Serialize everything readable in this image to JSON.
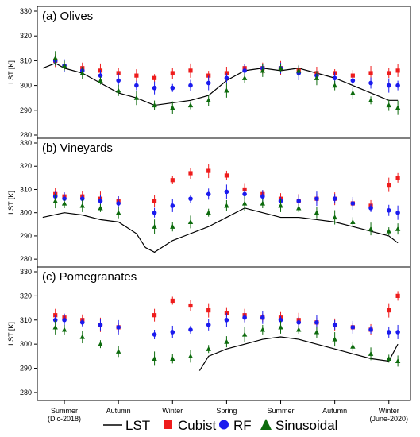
{
  "figure": {
    "x_tick_labels": [
      {
        "label": "Summer\n(Dic-2018)",
        "x": 0.0
      },
      {
        "label": "Autumn",
        "x": 3.0
      },
      {
        "label": "Winter",
        "x": 6.0
      },
      {
        "label": "Spring",
        "x": 9.0
      },
      {
        "label": "Summer",
        "x": 12.0
      },
      {
        "label": "Autumn",
        "x": 15.0
      },
      {
        "label": "Winter\n(June-2020)",
        "x": 18.0
      }
    ],
    "legend": [
      {
        "label": "LST",
        "color": "#000000",
        "marker": "line"
      },
      {
        "label": "Cubist",
        "color": "#ee1c1c",
        "marker": "square"
      },
      {
        "label": "RF",
        "color": "#1a1aee",
        "marker": "circle"
      },
      {
        "label": "Sinusoidal",
        "color": "#0d6b0d",
        "marker": "triangle"
      }
    ]
  },
  "chart_data": [
    {
      "type": "line",
      "title": "(a) Olives",
      "ylabel": "LST [K]",
      "ylim": [
        280,
        330
      ],
      "yticks": [
        280,
        290,
        300,
        310,
        320,
        330
      ],
      "xlim": [
        -1.5,
        19.2
      ],
      "series": [
        {
          "name": "LST",
          "x": [
            -1.2,
            -0.5,
            0,
            1,
            2,
            3,
            4,
            5,
            6,
            7,
            8,
            9,
            10,
            11,
            12,
            13,
            14,
            15,
            16,
            17,
            18,
            18.5
          ],
          "y": [
            307,
            309,
            307,
            305,
            301,
            297,
            295,
            292,
            293,
            294,
            296,
            302,
            306,
            307,
            306,
            307,
            305,
            303,
            300,
            297,
            294,
            294
          ]
        },
        {
          "name": "Cubist",
          "x": [
            -0.5,
            0,
            1,
            2,
            3,
            4,
            5,
            6,
            7,
            8,
            9,
            10,
            11,
            12,
            13,
            14,
            15,
            16,
            17,
            18,
            18.5
          ],
          "y": [
            310,
            308,
            307,
            306,
            305,
            304,
            303,
            305,
            306,
            304,
            305,
            307,
            307,
            307,
            306,
            305,
            305,
            304,
            305,
            305,
            306
          ]
        },
        {
          "name": "RF",
          "x": [
            -0.5,
            0,
            1,
            2,
            3,
            4,
            5,
            6,
            7,
            8,
            9,
            10,
            11,
            12,
            13,
            14,
            15,
            16,
            17,
            18,
            18.5
          ],
          "y": [
            310,
            308,
            306,
            304,
            302,
            300,
            299,
            299,
            300,
            301,
            303,
            306,
            307,
            307,
            305,
            304,
            303,
            302,
            301,
            300,
            300
          ]
        },
        {
          "name": "Sinusoidal",
          "x": [
            -0.5,
            0,
            1,
            2,
            3,
            4,
            5,
            6,
            7,
            8,
            9,
            10,
            11,
            12,
            13,
            14,
            15,
            16,
            17,
            18,
            18.5
          ],
          "y": [
            311,
            308,
            305,
            302,
            298,
            295,
            292,
            291,
            292,
            294,
            298,
            303,
            306,
            307,
            306,
            303,
            300,
            297,
            294,
            292,
            291
          ]
        }
      ]
    },
    {
      "type": "line",
      "title": "(b) Vineyards",
      "ylabel": "LST [K]",
      "ylim": [
        278,
        330
      ],
      "yticks": [
        280,
        290,
        300,
        310,
        320,
        330
      ],
      "xlim": [
        -1.5,
        19.2
      ],
      "series": [
        {
          "name": "LST",
          "x": [
            -1.2,
            0,
            1,
            2,
            3,
            4,
            4.5,
            5,
            6,
            7,
            8,
            9,
            10,
            11,
            12,
            13,
            14,
            15,
            16,
            17,
            18,
            18.5
          ],
          "y": [
            298,
            300,
            299,
            297,
            296,
            291,
            285,
            283,
            288,
            291,
            294,
            298,
            302,
            300,
            298,
            298,
            297,
            296,
            294,
            292,
            290,
            287
          ]
        },
        {
          "name": "Cubist",
          "x": [
            -0.5,
            0,
            1,
            2,
            3,
            5,
            6,
            7,
            8,
            9,
            10,
            11,
            12,
            13,
            14,
            15,
            16,
            17,
            18,
            18.5
          ],
          "y": [
            308,
            307,
            307,
            306,
            305,
            305,
            314,
            317,
            318,
            316,
            310,
            308,
            306,
            305,
            306,
            306,
            304,
            303,
            312,
            315
          ]
        },
        {
          "name": "RF",
          "x": [
            -0.5,
            0,
            1,
            2,
            3,
            5,
            6,
            7,
            8,
            9,
            10,
            11,
            12,
            13,
            14,
            15,
            16,
            17,
            18,
            18.5
          ],
          "y": [
            307,
            306,
            306,
            305,
            304,
            300,
            303,
            306,
            308,
            309,
            308,
            307,
            305,
            305,
            306,
            306,
            304,
            302,
            301,
            300
          ]
        },
        {
          "name": "Sinusoidal",
          "x": [
            -0.5,
            0,
            1,
            2,
            3,
            5,
            6,
            7,
            8,
            9,
            10,
            11,
            12,
            13,
            14,
            15,
            16,
            17,
            18,
            18.5
          ],
          "y": [
            305,
            304,
            303,
            302,
            300,
            294,
            294,
            296,
            300,
            303,
            304,
            304,
            303,
            302,
            300,
            298,
            296,
            293,
            292,
            293
          ]
        }
      ]
    },
    {
      "type": "line",
      "title": "(c) Pomegranates",
      "ylabel": "LST [K]",
      "ylim": [
        278,
        330
      ],
      "yticks": [
        280,
        290,
        300,
        310,
        320,
        330
      ],
      "xlim": [
        -1.5,
        19.2
      ],
      "series": [
        {
          "name": "LST",
          "x": [
            7.5,
            8,
            9,
            10,
            11,
            12,
            13,
            14,
            15,
            16,
            17,
            18,
            18.5
          ],
          "y": [
            289,
            295,
            298,
            300,
            302,
            303,
            302,
            300,
            298,
            296,
            294,
            293,
            300
          ]
        },
        {
          "name": "Cubist",
          "x": [
            -0.5,
            0,
            1,
            2,
            3,
            5,
            6,
            7,
            8,
            9,
            10,
            11,
            12,
            13,
            14,
            15,
            16,
            17,
            18,
            18.5
          ],
          "y": [
            312,
            311,
            310,
            308,
            307,
            312,
            318,
            316,
            314,
            313,
            312,
            311,
            311,
            310,
            309,
            308,
            307,
            306,
            314,
            320
          ]
        },
        {
          "name": "RF",
          "x": [
            -0.5,
            0,
            1,
            2,
            3,
            5,
            6,
            7,
            8,
            9,
            10,
            11,
            12,
            13,
            14,
            15,
            16,
            17,
            18,
            18.5
          ],
          "y": [
            310,
            310,
            309,
            308,
            307,
            304,
            305,
            306,
            308,
            310,
            311,
            311,
            310,
            309,
            309,
            308,
            307,
            306,
            305,
            305
          ]
        },
        {
          "name": "Sinusoidal",
          "x": [
            -0.5,
            0,
            1,
            2,
            3,
            5,
            6,
            7,
            8,
            9,
            10,
            11,
            12,
            13,
            14,
            15,
            16,
            17,
            18,
            18.5
          ],
          "y": [
            307,
            306,
            303,
            300,
            297,
            294,
            294,
            295,
            298,
            301,
            304,
            306,
            307,
            306,
            305,
            302,
            299,
            296,
            294,
            293
          ]
        }
      ]
    }
  ]
}
